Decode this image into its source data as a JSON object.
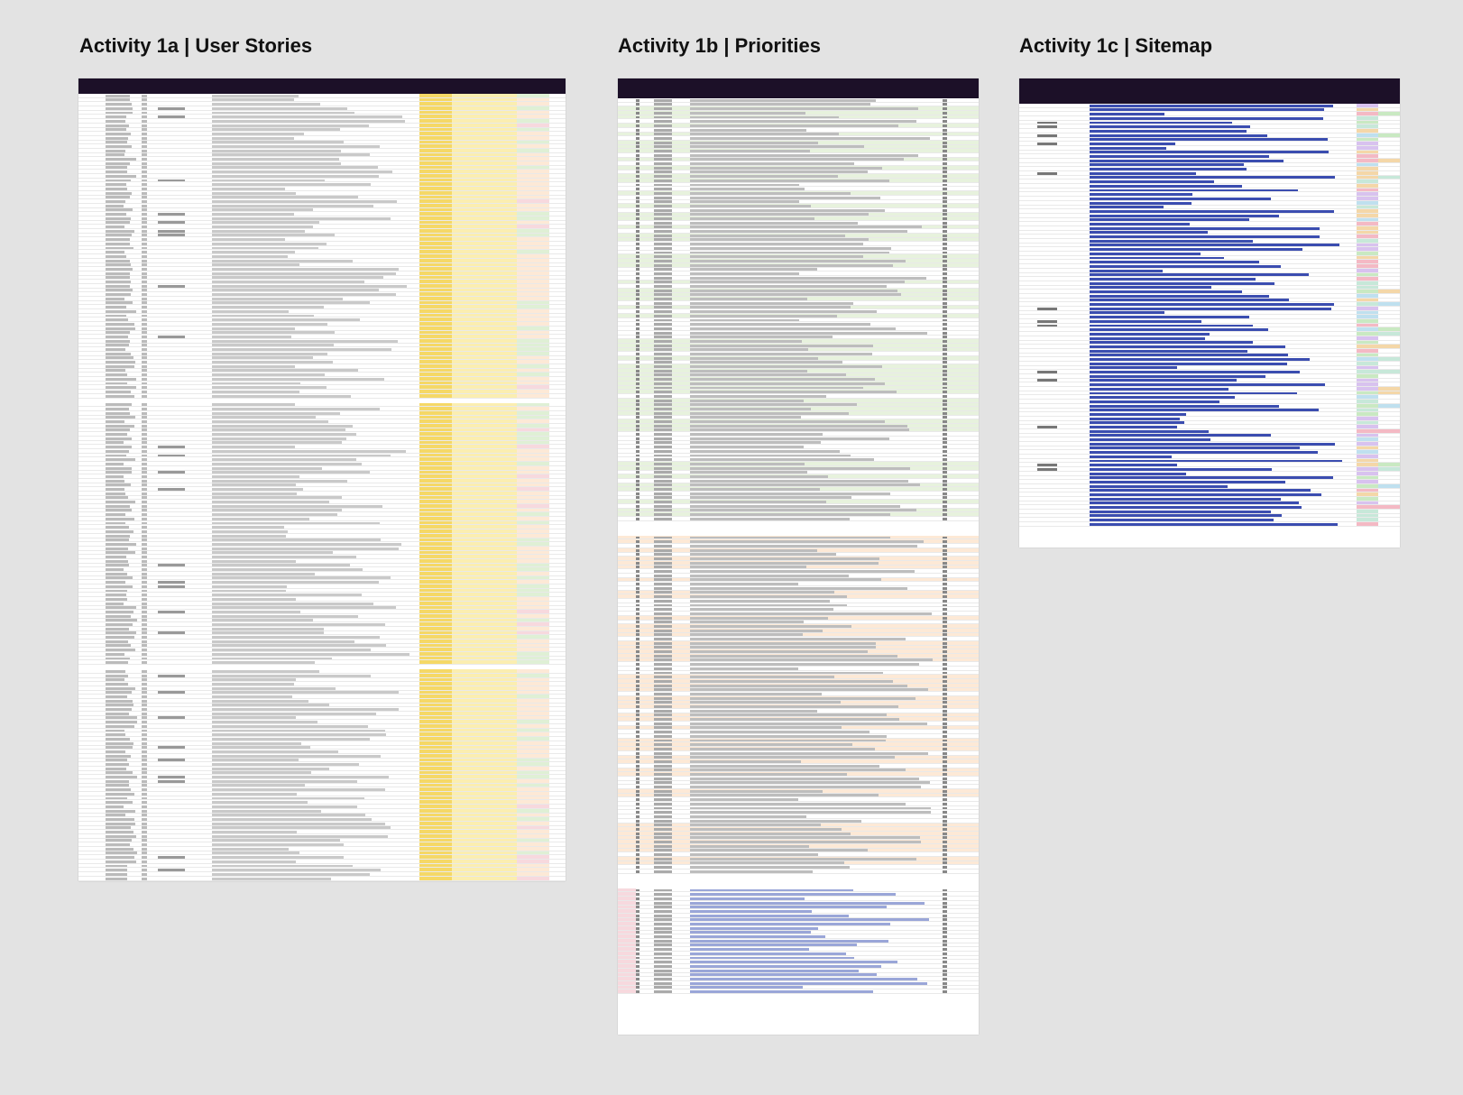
{
  "panels": [
    {
      "title": "Activity 1a | User Stories"
    },
    {
      "title": "Activity 1b | Priorities"
    },
    {
      "title": "Activity 1c | Sitemap"
    }
  ],
  "colors": {
    "page_bg": "#e3e3e3",
    "header_bg": "#1c1028",
    "yellow_strong": "#f5d866",
    "yellow_light": "#fbeeb0",
    "green_light": "#dff0d5",
    "green_row": "#e7f2dd",
    "peach_row": "#fde9d6",
    "pink_row": "#f7d9de",
    "blue_link": "#3b4db0"
  },
  "icons": []
}
